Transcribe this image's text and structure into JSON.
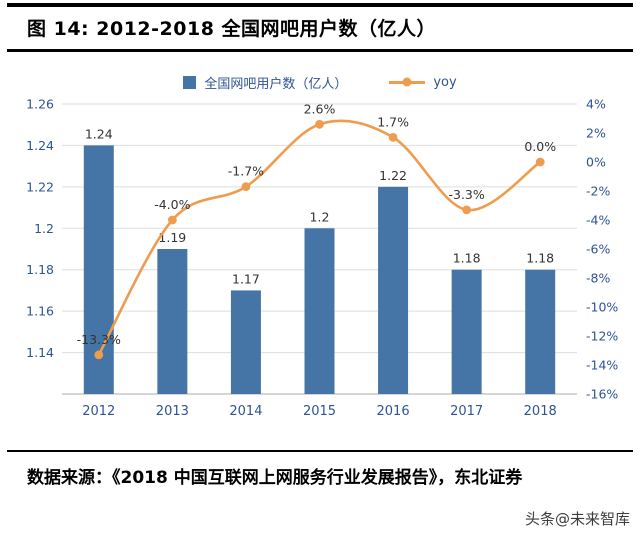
{
  "header": {
    "title": "图 14:  2012-2018 全国网吧用户数（亿人）"
  },
  "legend": {
    "bar_label": "全国网吧用户数（亿人）",
    "line_label": "yoy"
  },
  "chart_data": {
    "type": "bar+line",
    "title": "2012-2018 全国网吧用户数（亿人）",
    "categories": [
      "2012",
      "2013",
      "2014",
      "2015",
      "2016",
      "2017",
      "2018"
    ],
    "series": [
      {
        "name": "全国网吧用户数（亿人）",
        "type": "bar",
        "axis": "left",
        "values": [
          1.24,
          1.19,
          1.17,
          1.2,
          1.22,
          1.18,
          1.18
        ],
        "labels": [
          "1.24",
          "1.19",
          "1.17",
          "1.2",
          "1.22",
          "1.18",
          "1.18"
        ],
        "color": "#4574A6"
      },
      {
        "name": "yoy",
        "type": "line",
        "axis": "right",
        "values": [
          -13.3,
          -4.0,
          -1.7,
          2.6,
          1.7,
          -3.3,
          0.0
        ],
        "labels": [
          "-13.3%",
          "-4.0%",
          "-1.7%",
          "2.6%",
          "1.7%",
          "-3.3%",
          "0.0%"
        ],
        "color": "#EE9C4D"
      }
    ],
    "left_axis": {
      "min": 1.12,
      "max": 1.26,
      "tick_values": [
        1.26,
        1.24,
        1.22,
        1.2,
        1.18,
        1.16,
        1.14
      ],
      "tick_labels": [
        "1.26",
        "1.24",
        "1.22",
        "1.2",
        "1.18",
        "1.16",
        "1.14"
      ]
    },
    "right_axis": {
      "min": -16,
      "max": 4,
      "tick_values": [
        4,
        2,
        0,
        -2,
        -4,
        -6,
        -8,
        -10,
        -12,
        -14,
        -16
      ],
      "tick_labels": [
        "4%",
        "2%",
        "0%",
        "-2%",
        "-4%",
        "-6%",
        "-8%",
        "-10%",
        "-12%",
        "-14%",
        "-16%"
      ]
    },
    "grid": true,
    "legend_position": "top",
    "colors": {
      "bar": "#4574A6",
      "line": "#EE9C4D",
      "axis_text": "#2E5493",
      "data_label": "#333333",
      "gridline": "#DEDEDE",
      "axis_line": "#ABABAB"
    }
  },
  "footer": {
    "source": "数据来源：《2018 中国互联网上网服务行业发展报告》，东北证券"
  },
  "watermark": "头条@未来智库"
}
